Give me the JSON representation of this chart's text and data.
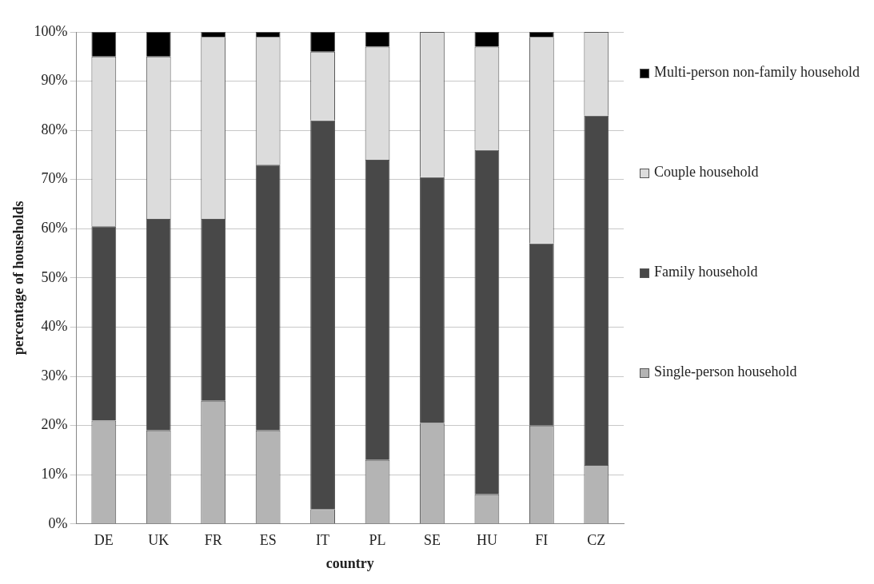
{
  "chart_data": {
    "type": "bar",
    "stacked": true,
    "xlabel": "country",
    "ylabel": "percentage of households",
    "categories": [
      "DE",
      "UK",
      "FR",
      "ES",
      "IT",
      "PL",
      "SE",
      "HU",
      "FI",
      "CZ"
    ],
    "series": [
      {
        "name": "Single-person household",
        "color": "#b4b4b4",
        "values": [
          21,
          19,
          25,
          19,
          3,
          13,
          20.5,
          6,
          20,
          12
        ]
      },
      {
        "name": "Family household",
        "color": "#484848",
        "values": [
          39.5,
          43,
          37,
          54,
          79,
          61,
          50,
          70,
          37,
          71
        ]
      },
      {
        "name": "Couple household",
        "color": "#dcdcdc",
        "values": [
          34.5,
          33,
          37,
          26,
          14,
          23,
          29.5,
          21,
          42,
          17
        ]
      },
      {
        "name": "Multi-person non-family household",
        "color": "#000000",
        "values": [
          5,
          5,
          1,
          1,
          4,
          3,
          0,
          3,
          1,
          0
        ]
      }
    ],
    "ylim": [
      0,
      100
    ],
    "yticks": [
      {
        "value": 0,
        "label": "0%"
      },
      {
        "value": 10,
        "label": "10%"
      },
      {
        "value": 20,
        "label": "20%"
      },
      {
        "value": 30,
        "label": "30%"
      },
      {
        "value": 40,
        "label": "40%"
      },
      {
        "value": 50,
        "label": "50%"
      },
      {
        "value": 60,
        "label": "60%"
      },
      {
        "value": 70,
        "label": "70%"
      },
      {
        "value": 80,
        "label": "80%"
      },
      {
        "value": 90,
        "label": "90%"
      },
      {
        "value": 100,
        "label": "100%"
      }
    ],
    "grid": "y",
    "legend": "right"
  }
}
